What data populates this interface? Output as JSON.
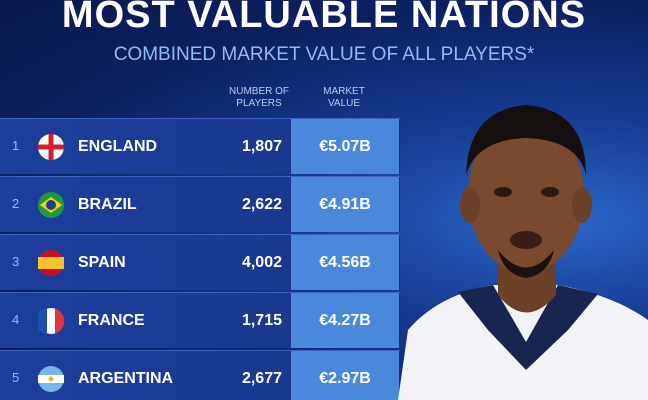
{
  "header": {
    "title": "MOST VALUABLE NATIONS",
    "subtitle": "COMBINED MARKET VALUE OF ALL PLAYERS*"
  },
  "table": {
    "columns": [
      "NUMBER OF PLAYERS",
      "MARKET VALUE"
    ],
    "rows": [
      {
        "rank": 1,
        "country": "ENGLAND",
        "players": "1,807",
        "market_value": "€5.07B"
      },
      {
        "rank": 2,
        "country": "BRAZIL",
        "players": "2,622",
        "market_value": "€4.91B"
      },
      {
        "rank": 3,
        "country": "SPAIN",
        "players": "4,002",
        "market_value": "€4.56B"
      },
      {
        "rank": 4,
        "country": "FRANCE",
        "players": "1,715",
        "market_value": "€4.27B"
      },
      {
        "rank": 5,
        "country": "ARGENTINA",
        "players": "2,677",
        "market_value": "€2.97B"
      }
    ]
  }
}
